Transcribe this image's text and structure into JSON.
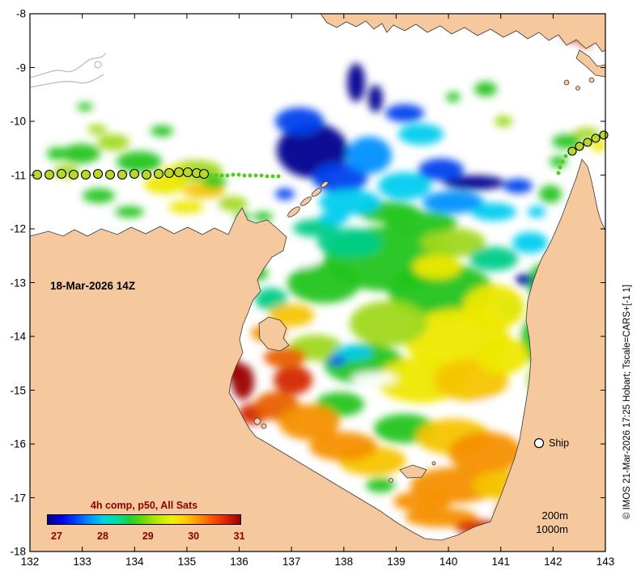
{
  "map": {
    "date_label": "18-Mar-2026 14Z",
    "ship_legend_label": "Ship",
    "depth_label_200": "200m",
    "depth_label_1000": "1000m",
    "copyright": "© IMOS 21-Mar-2026 17:25 Hobart; Tscale=CARS+[-1 1]"
  },
  "axes": {
    "x_ticks": [
      "132",
      "133",
      "134",
      "135",
      "136",
      "137",
      "138",
      "139",
      "140",
      "141",
      "142",
      "143"
    ],
    "y_ticks": [
      "-8",
      "-9",
      "-10",
      "-11",
      "-12",
      "-13",
      "-14",
      "-15",
      "-16",
      "-17",
      "-18"
    ]
  },
  "colorbar": {
    "title": "4h comp, p50, All Sats",
    "tick_labels": [
      "27",
      "28",
      "29",
      "30",
      "31"
    ],
    "text_color": "#8b0000",
    "gradient": [
      "#00008c",
      "#0000e8",
      "#0040ff",
      "#0090ff",
      "#00d0e8",
      "#00e0a0",
      "#20d030",
      "#70dc00",
      "#b8e800",
      "#f0f000",
      "#ffcc00",
      "#ff9000",
      "#ff5000",
      "#e02000",
      "#980000"
    ]
  },
  "colors": {
    "land": "#f6c89e",
    "sea": "#ffffff",
    "coastline": "#3a3a3a"
  },
  "ship_track": {
    "circle_fill": "#b8d82e",
    "dot_fill": "#55cc22",
    "main_circles": [
      [
        46,
        216
      ],
      [
        61,
        216
      ],
      [
        76,
        215
      ],
      [
        91,
        216
      ],
      [
        106,
        216
      ],
      [
        121,
        215
      ],
      [
        136,
        216
      ],
      [
        151,
        216
      ],
      [
        166,
        215
      ],
      [
        181,
        216
      ],
      [
        196,
        215
      ],
      [
        209,
        214
      ],
      [
        221,
        213
      ],
      [
        232,
        213
      ],
      [
        243,
        214
      ],
      [
        252,
        215
      ]
    ],
    "small_dots": [
      [
        260,
        217
      ],
      [
        267,
        217
      ],
      [
        274,
        217
      ],
      [
        281,
        217
      ],
      [
        288,
        216
      ],
      [
        295,
        216
      ],
      [
        302,
        217
      ],
      [
        309,
        217
      ],
      [
        316,
        217
      ],
      [
        323,
        217
      ],
      [
        330,
        218
      ],
      [
        337,
        218
      ],
      [
        344,
        218
      ]
    ],
    "ne_circles": [
      [
        746,
        167
      ],
      [
        736,
        171
      ],
      [
        726,
        176
      ],
      [
        716,
        181
      ],
      [
        707,
        187
      ]
    ],
    "ne_dots": [
      [
        699,
        193
      ],
      [
        695,
        200
      ],
      [
        692,
        207
      ],
      [
        690,
        214
      ]
    ]
  }
}
